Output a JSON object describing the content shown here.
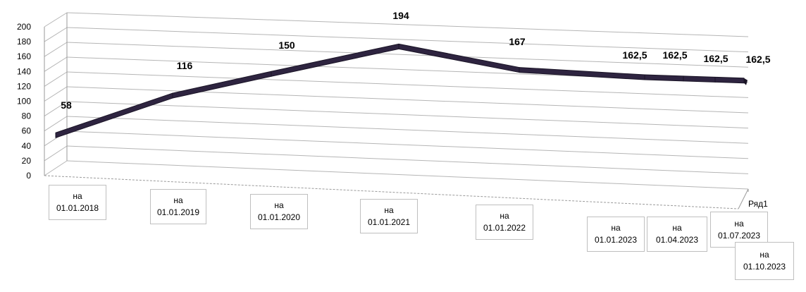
{
  "chart_data": {
    "type": "line",
    "title": "",
    "xlabel": "",
    "ylabel": "",
    "ylim": [
      0,
      200
    ],
    "yticks": [
      "0",
      "20",
      "40",
      "60",
      "80",
      "100",
      "120",
      "140",
      "160",
      "180",
      "200"
    ],
    "categories": [
      {
        "prefix": "на",
        "date": "01.01.2018"
      },
      {
        "prefix": "на",
        "date": "01.01.2019"
      },
      {
        "prefix": "на",
        "date": "01.01.2020"
      },
      {
        "prefix": "на",
        "date": "01.01.2021"
      },
      {
        "prefix": "на",
        "date": "01.01.2022"
      },
      {
        "prefix": "на",
        "date": "01.01.2023"
      },
      {
        "prefix": "на",
        "date": "01.04.2023"
      },
      {
        "prefix": "на",
        "date": "01.07.2023"
      },
      {
        "prefix": "на",
        "date": "01.10.2023"
      }
    ],
    "series": [
      {
        "name": "Ряд1",
        "values": [
          58,
          116,
          150,
          194,
          167,
          162.5,
          162.5,
          162.5,
          162.5
        ],
        "labels": [
          "58",
          "116",
          "150",
          "194",
          "167",
          "162,5",
          "162,5",
          "162,5",
          "162,5"
        ],
        "color": "#2e2440"
      }
    ],
    "grid": true,
    "style": "3d-line"
  }
}
